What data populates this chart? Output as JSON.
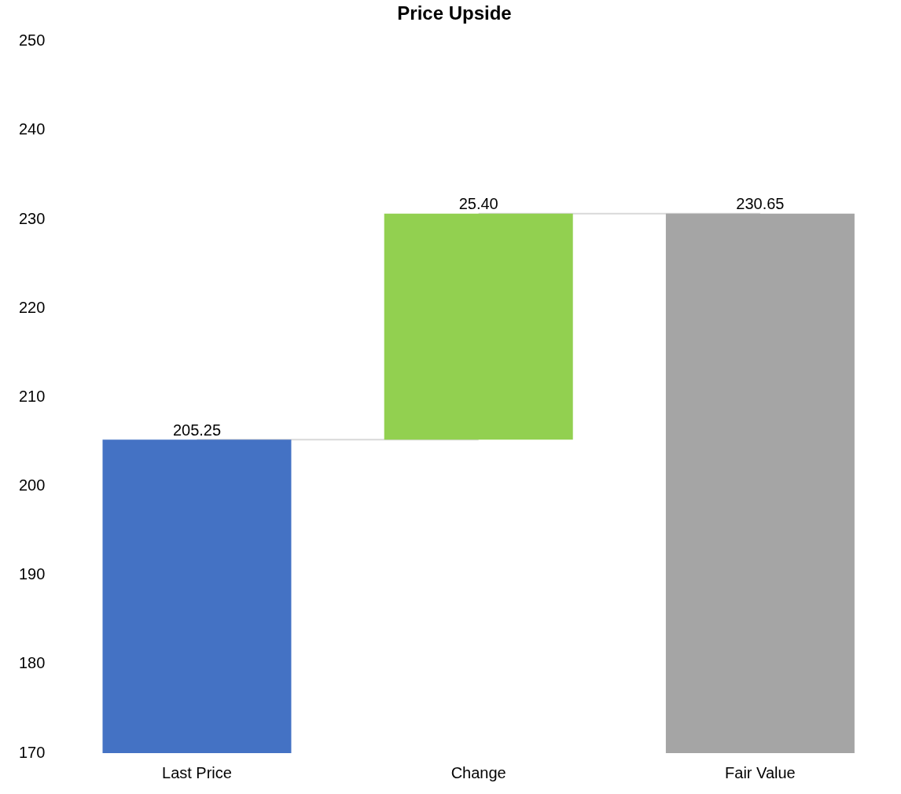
{
  "chart_data": {
    "type": "bar",
    "title": "Price Upside",
    "categories": [
      "Last Price",
      "Change",
      "Fair Value"
    ],
    "values": [
      205.25,
      25.4,
      230.65
    ],
    "base": [
      null,
      205.25,
      null
    ],
    "colors": [
      "#4472c4",
      "#92d050",
      "#a5a5a5"
    ],
    "value_labels": [
      "205.25",
      "25.40",
      "230.65"
    ],
    "ylim": [
      170,
      250
    ],
    "yticks": [
      170,
      180,
      190,
      200,
      210,
      220,
      230,
      240,
      250
    ],
    "series": [
      {
        "type": "line",
        "color": "#d9d9d9",
        "values": [
          205.25,
          205.25,
          null
        ]
      },
      {
        "type": "line",
        "color": "#d9d9d9",
        "values": [
          null,
          230.65,
          230.65
        ]
      }
    ],
    "grid": false,
    "legend": false
  }
}
